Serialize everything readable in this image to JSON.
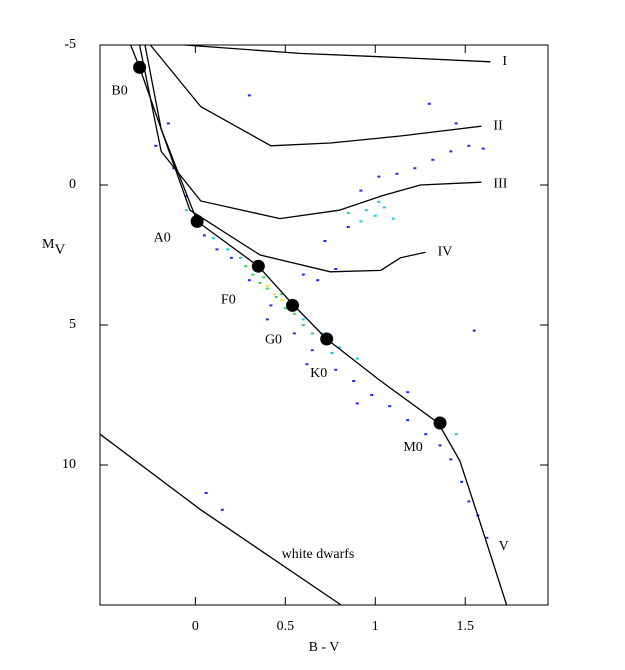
{
  "chart_data": {
    "type": "scatter",
    "x_label": "B - V",
    "y_label": "M",
    "y_label_sub": "V",
    "xlim": [
      -0.53,
      1.96
    ],
    "ylim": [
      -5,
      15
    ],
    "y_inverted": true,
    "xticks": [
      0,
      0.5,
      1,
      1.5
    ],
    "yticks": [
      -5,
      0,
      5,
      10
    ],
    "series": [
      {
        "color": "#1a2cf0",
        "x": [
          -0.22,
          -0.12,
          -0.05,
          0.05,
          0.12,
          0.2,
          0.3,
          0.42,
          0.55,
          0.65,
          0.78,
          0.88,
          0.98,
          1.08,
          1.18,
          1.28,
          1.36,
          1.42,
          1.48,
          1.52,
          1.57,
          1.62,
          0.72,
          0.85,
          0.92,
          1.02,
          1.12,
          1.22,
          1.32,
          1.42,
          1.52,
          1.6,
          0.6,
          0.68,
          0.78,
          0.3,
          1.3,
          1.45,
          0.9,
          -0.15,
          0.4,
          0.62,
          0.06,
          0.15,
          1.18,
          1.55
        ],
        "y": [
          -1.4,
          -0.6,
          0.4,
          1.8,
          2.3,
          2.6,
          3.4,
          4.3,
          5.3,
          5.9,
          6.6,
          7.0,
          7.5,
          7.9,
          8.4,
          8.9,
          9.3,
          9.8,
          10.6,
          11.3,
          11.8,
          12.6,
          2.0,
          1.5,
          0.2,
          -0.3,
          -0.4,
          -0.6,
          -0.9,
          -1.2,
          -1.4,
          -1.3,
          3.2,
          3.4,
          3.0,
          -3.2,
          -2.9,
          -2.2,
          7.8,
          -2.2,
          4.8,
          6.4,
          11.0,
          11.6,
          7.4,
          5.2
        ]
      },
      {
        "color": "#19c8e6",
        "x": [
          -0.05,
          0.02,
          0.1,
          0.18,
          0.25,
          0.6,
          0.7,
          0.8,
          0.9,
          0.95,
          1.0,
          1.05,
          1.1,
          0.92,
          1.02,
          1.35,
          1.45,
          0.85,
          0.76
        ],
        "y": [
          0.9,
          1.4,
          1.9,
          2.3,
          2.6,
          4.8,
          5.3,
          5.8,
          6.2,
          0.9,
          1.1,
          0.8,
          1.2,
          1.3,
          0.6,
          8.3,
          8.9,
          1.0,
          6.0
        ]
      },
      {
        "color": "#30d860",
        "x": [
          0.28,
          0.32,
          0.36,
          0.4,
          0.45,
          0.5,
          0.55,
          0.6,
          0.65,
          0.38,
          0.48
        ],
        "y": [
          2.9,
          3.2,
          3.5,
          3.7,
          4.0,
          4.4,
          4.6,
          5.0,
          5.3,
          3.3,
          3.9
        ]
      },
      {
        "color": "#e8e830",
        "x": [
          0.4,
          0.44,
          0.48,
          0.52
        ],
        "y": [
          3.6,
          3.9,
          4.1,
          4.3
        ]
      }
    ],
    "curves": [
      {
        "label": "I",
        "x": [
          -0.06,
          0.58,
          1.14,
          1.64
        ],
        "y": [
          -5,
          -4.7,
          -4.55,
          -4.4
        ]
      },
      {
        "label": "II",
        "x": [
          -0.25,
          0.03,
          0.42,
          0.75,
          1.14,
          1.59
        ],
        "y": [
          -5,
          -2.8,
          -1.4,
          -1.5,
          -1.75,
          -2.1
        ]
      },
      {
        "label": "III",
        "x": [
          -0.31,
          -0.19,
          0.03,
          0.47,
          0.8,
          1.03,
          1.25,
          1.59
        ],
        "y": [
          -5,
          -1.2,
          0.57,
          1.2,
          0.9,
          0.4,
          0,
          -0.1
        ]
      },
      {
        "label": "IV",
        "x": [
          -0.28,
          -0.19,
          -0.03,
          0.36,
          0.75,
          1.03,
          1.14,
          1.28
        ],
        "y": [
          -5,
          -2,
          0.9,
          2.5,
          3.1,
          3.05,
          2.6,
          2.4
        ]
      },
      {
        "label": "V",
        "x": [
          -0.36,
          -0.31,
          -0.19,
          0.01,
          0.35,
          0.54,
          0.73,
          1.03,
          1.35,
          1.47,
          1.58,
          1.73
        ],
        "y": [
          -5,
          -4.2,
          -2,
          1.3,
          2.9,
          4.25,
          5.5,
          7,
          8.5,
          9.85,
          12,
          15
        ]
      },
      {
        "label": "white dwarfs",
        "x": [
          -0.53,
          0.03,
          0.81
        ],
        "y": [
          8.9,
          11.6,
          15
        ]
      }
    ],
    "markers": {
      "labels": [
        "B0",
        "A0",
        "F0",
        "G0",
        "K0",
        "M0"
      ],
      "x": [
        -0.31,
        0.01,
        0.35,
        0.54,
        0.73,
        1.36
      ],
      "y": [
        -4.2,
        1.3,
        2.9,
        4.3,
        5.5,
        8.5
      ],
      "color": "#000000"
    }
  }
}
